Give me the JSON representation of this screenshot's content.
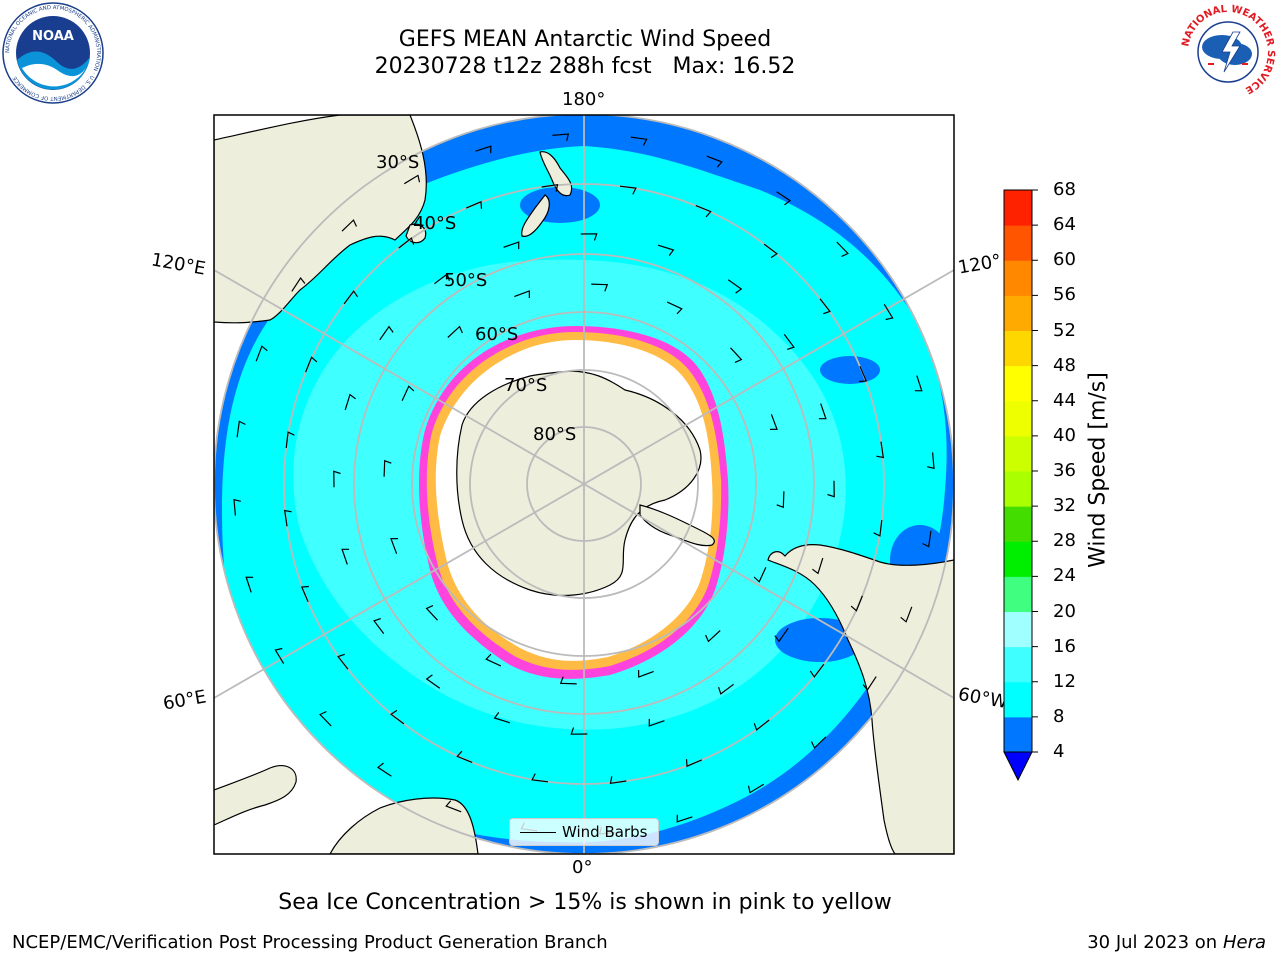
{
  "titles": {
    "line1": "GEFS MEAN Antarctic Wind Speed",
    "line2": "20230728 t12z 288h fcst   Max: 16.52"
  },
  "map_labels": {
    "lon_top": "180°",
    "lon_bottom": "0°",
    "lon_left_upper": "120°E",
    "lon_left_lower": "60°E",
    "lon_right_upper": "120°",
    "lon_right_lower": "60°W",
    "lat_30": "30°S",
    "lat_40": "40°S",
    "lat_50": "50°S",
    "lat_60": "60°S",
    "lat_70": "70°S",
    "lat_80": "80°S"
  },
  "legend": {
    "label": "Wind Barbs"
  },
  "caption": "Sea Ice Concentration > 15% is shown in pink to yellow",
  "footer": {
    "left": "NCEP/EMC/Verification Post Processing Product Generation Branch",
    "right_date": "30 Jul 2023 on ",
    "right_host": "Hera"
  },
  "colorbar": {
    "title": "Wind Speed [m/s]",
    "ticks": [
      "4",
      "8",
      "12",
      "16",
      "20",
      "24",
      "28",
      "32",
      "36",
      "40",
      "44",
      "48",
      "52",
      "56",
      "60",
      "64",
      "68"
    ],
    "colors": [
      "#0077ff",
      "#00ffff",
      "#40ffff",
      "#a0ffff",
      "#40ff80",
      "#00ee00",
      "#44dd00",
      "#aaff00",
      "#ccff00",
      "#eeff00",
      "#ffff00",
      "#ffd700",
      "#ffaa00",
      "#ff8800",
      "#ff5500",
      "#ff2200"
    ],
    "extend_color": "#0000ff"
  },
  "colors": {
    "land": "#eeeedd",
    "ocean_low": "#0077ff",
    "ocean_mid": "#00ffff",
    "ocean_high": "#40ffff",
    "sea_ice": "#ffffff",
    "ice_edge": "#ff44dd",
    "ice_edge_high": "#ffbb44",
    "grid": "#bbbbbb"
  },
  "logos": {
    "noaa_text": "NOAA",
    "noaa_ring": "NATIONAL OCEANIC AND ATMOSPHERIC ADMINISTRATION · U.S. DEPARTMENT OF COMMERCE",
    "nws_ring": "NATIONAL WEATHER SERVICE"
  }
}
